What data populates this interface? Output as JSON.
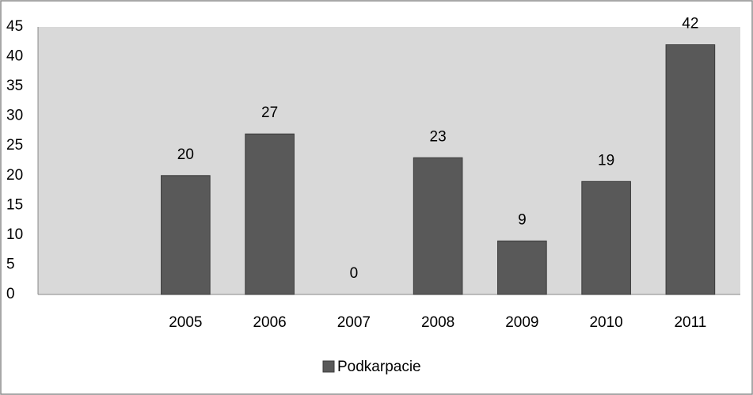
{
  "chart_data": {
    "type": "bar",
    "categories": [
      null,
      "2005",
      "2006",
      "2007",
      "2008",
      "2009",
      "2010",
      "2011"
    ],
    "series": [
      {
        "name": "Podkarpacie",
        "color": "#595959",
        "values": [
          null,
          20,
          27,
          0,
          23,
          9,
          19,
          42
        ]
      }
    ],
    "ylim": [
      0,
      45
    ],
    "yticks": [
      0,
      5,
      10,
      15,
      20,
      25,
      30,
      35,
      40,
      45
    ],
    "grid": false,
    "legend": "bottom"
  }
}
